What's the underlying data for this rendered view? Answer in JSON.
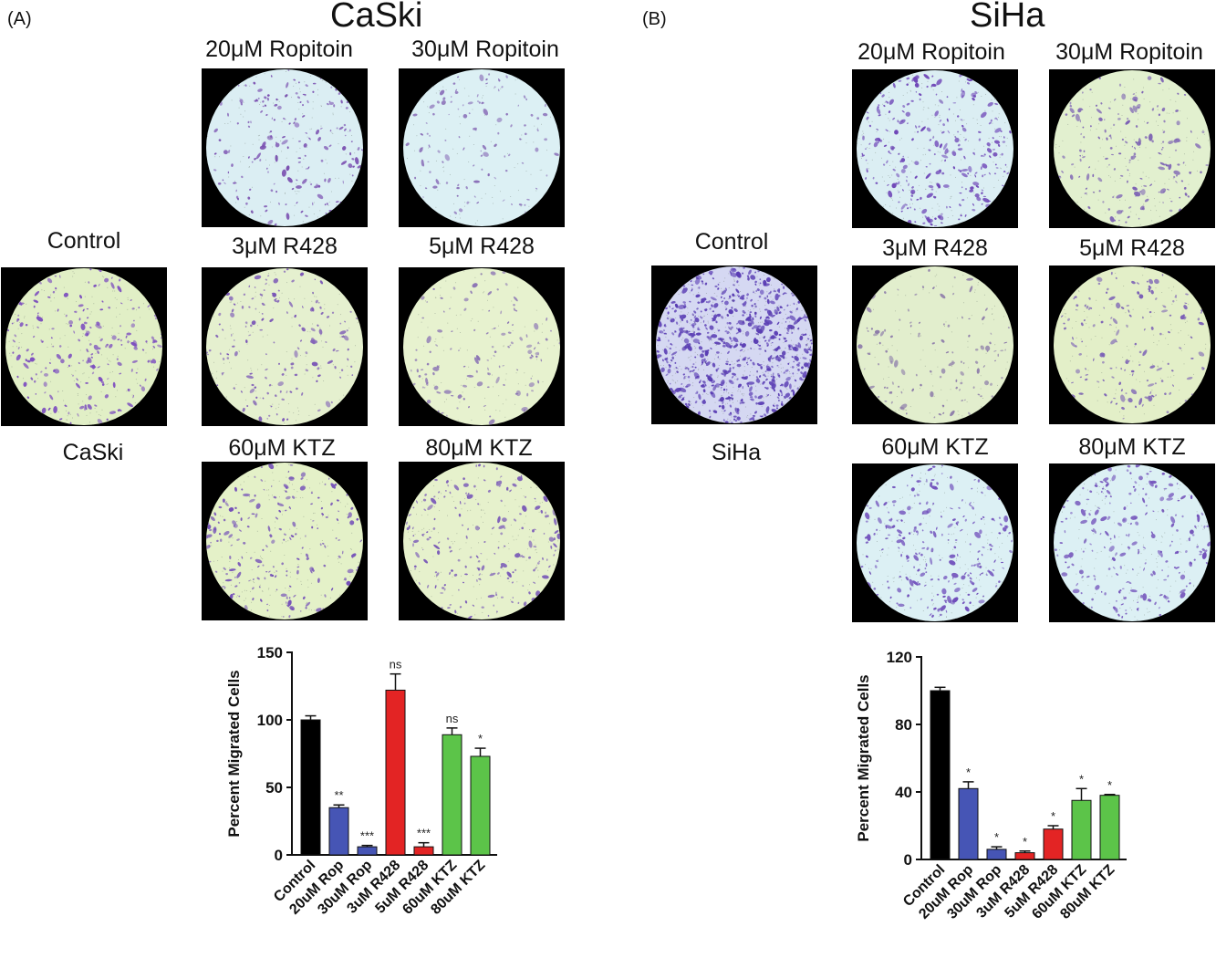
{
  "panels": [
    {
      "tag": "(A)",
      "cell_line": "CaSki",
      "control_label": "Control",
      "control_sublabel": "CaSki",
      "tiles": [
        {
          "label": "20μM Ropitoin",
          "tint": "#dbeef3",
          "dot": "#7a4fb0",
          "density": 170
        },
        {
          "label": "30μM Ropitoin",
          "tint": "#dcf0f4",
          "dot": "#8a6fb8",
          "density": 110
        },
        {
          "label": "3μM R428",
          "tint": "#e5f0cf",
          "dot": "#7a56b6",
          "density": 150
        },
        {
          "label": "5μM R428",
          "tint": "#e7f2cf",
          "dot": "#8a73b4",
          "density": 120
        },
        {
          "label": "60μM KTZ",
          "tint": "#e4f1c8",
          "dot": "#7450b8",
          "density": 200
        },
        {
          "label": "80μM KTZ",
          "tint": "#e6f1cc",
          "dot": "#7a5ab8",
          "density": 190
        }
      ],
      "control_tile": {
        "tint": "#e1efc6",
        "dot": "#7d4fbf",
        "density": 200
      }
    },
    {
      "tag": "(B)",
      "cell_line": "SiHa",
      "control_label": "Control",
      "control_sublabel": "SiHa",
      "tiles": [
        {
          "label": "20μM Ropitoin",
          "tint": "#dbeef3",
          "dot": "#6f47b8",
          "density": 260
        },
        {
          "label": "30μM Ropitoin",
          "tint": "#e2f0cf",
          "dot": "#7b60b4",
          "density": 170
        },
        {
          "label": "3μM R428",
          "tint": "#e2eecd",
          "dot": "#8a78a8",
          "density": 110
        },
        {
          "label": "5μM R428",
          "tint": "#e3efc8",
          "dot": "#7a5fb6",
          "density": 150
        },
        {
          "label": "60μM KTZ",
          "tint": "#dcf0f4",
          "dot": "#6e4cba",
          "density": 230
        },
        {
          "label": "80μM KTZ",
          "tint": "#dcf0f4",
          "dot": "#7352bb",
          "density": 210
        }
      ],
      "control_tile": {
        "tint": "#d5d8f2",
        "dot": "#5a3db4",
        "density": 650
      }
    }
  ],
  "chart_data": [
    {
      "type": "bar",
      "ylabel": "Percent Migrated Cells",
      "ylim": [
        0,
        150
      ],
      "yticks": [
        0,
        50,
        100,
        150
      ],
      "categories": [
        "Control",
        "20uM Rop",
        "30uM Rop",
        "3uM R428",
        "5uM R428",
        "60uM KTZ",
        "80uM KTZ"
      ],
      "values": [
        100,
        35,
        6,
        122,
        6,
        89,
        73
      ],
      "errors": [
        3,
        2,
        1,
        12,
        3,
        5,
        6
      ],
      "annotations": [
        "",
        "**",
        "***",
        "ns",
        "***",
        "ns",
        "*"
      ],
      "colors": [
        "#000000",
        "#4655b5",
        "#4655b5",
        "#e32424",
        "#e32424",
        "#5cc449",
        "#5cc449"
      ],
      "grid": false
    },
    {
      "type": "bar",
      "ylabel": "Percent Migrated Cells",
      "ylim": [
        0,
        120
      ],
      "yticks": [
        0,
        40,
        80,
        120
      ],
      "categories": [
        "Control",
        "20uM Rop",
        "30uM Rop",
        "3uM R428",
        "5uM R428",
        "60uM KTZ",
        "80uM KTZ"
      ],
      "values": [
        100,
        42,
        6,
        4,
        18,
        35,
        38
      ],
      "errors": [
        2,
        4,
        1.5,
        1,
        2,
        7,
        0.5
      ],
      "annotations": [
        "",
        "*",
        "*",
        "*",
        "*",
        "*",
        "*"
      ],
      "colors": [
        "#000000",
        "#4655b5",
        "#4655b5",
        "#e32424",
        "#e32424",
        "#5cc449",
        "#5cc449"
      ],
      "grid": false
    }
  ]
}
